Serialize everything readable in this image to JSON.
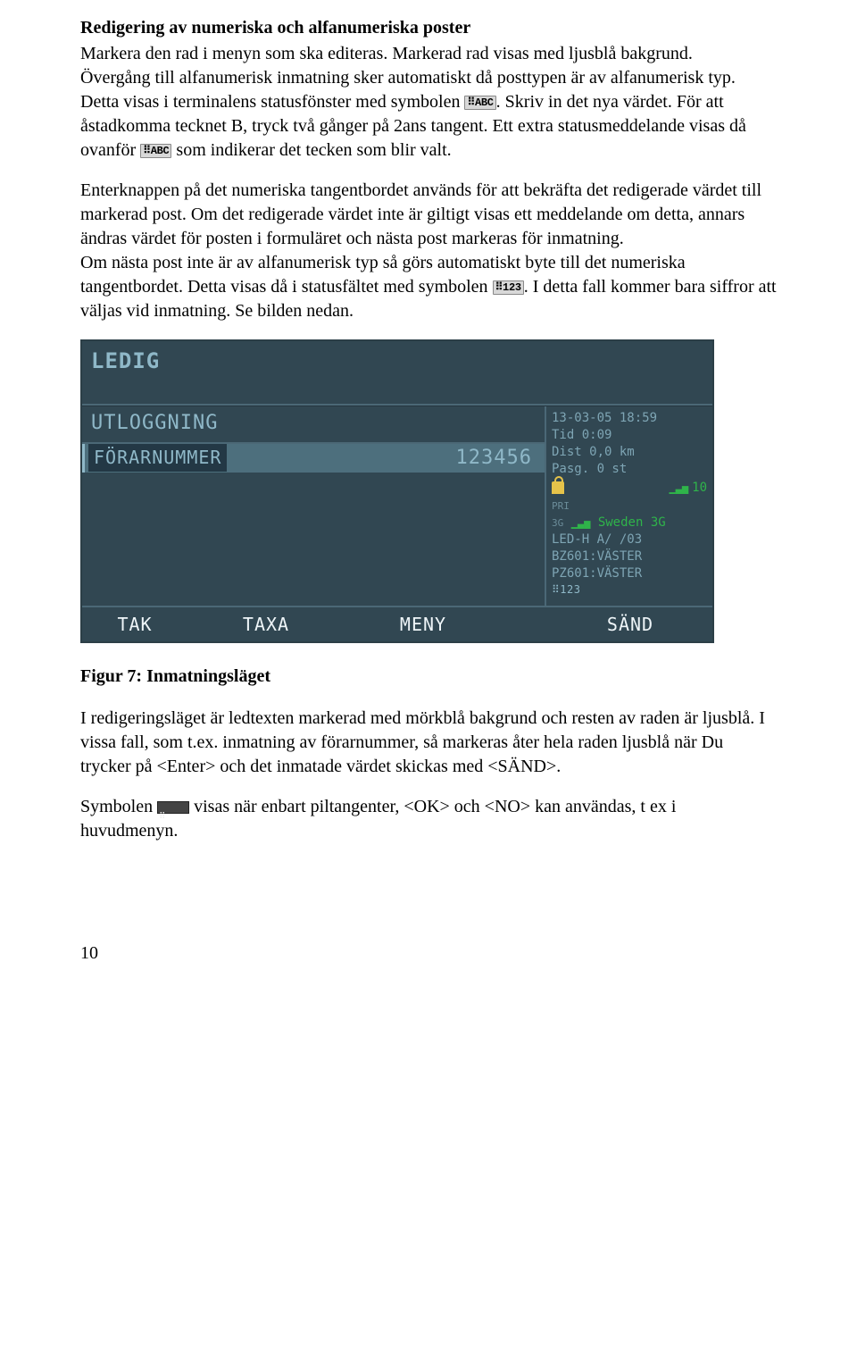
{
  "heading": "Redigering av numeriska och alfanumeriska poster",
  "para1_a": "Markera den rad i menyn som ska editeras. Markerad rad visas med ljusblå bakgrund.",
  "para1_b": "Övergång till alfanumerisk inmatning sker automatiskt då posttypen är av alfanumerisk typ. Detta visas i terminalens statusfönster med symbolen ",
  "para1_c": ". Skriv in det nya värdet. För att åstadkomma tecknet B, tryck två gånger på 2ans tangent. Ett extra statusmeddelande visas då ovanför ",
  "para1_d": " som indikerar det tecken som blir valt.",
  "para2_a": "Enterknappen på det numeriska tangentbordet används för att bekräfta det redigerade värdet till markerad post. Om det redigerade värdet inte är giltigt visas ett meddelande om detta, annars ändras värdet för posten i formuläret och nästa post markeras för inmatning.",
  "para2_b": "Om nästa post inte är av alfanumerisk typ så görs automatiskt byte till det numeriska tangentbordet. Detta visas då i statusfältet med symbolen ",
  "para2_c": ". I detta fall kommer bara siffror att väljas vid inmatning. Se bilden nedan.",
  "badge_abc": "⠿ABC",
  "badge_123": "⠿123",
  "terminal": {
    "status": "LEDIG",
    "screen_title": "UTLOGGNING",
    "field_label": "FÖRARNUMMER",
    "field_value": "123456",
    "side": {
      "datetime": "13-03-05 18:59",
      "tid": "Tid 0:09",
      "dist": "Dist 0,0 km",
      "pasg": "Pasg. 0 st",
      "signal_val": "10",
      "pri": "PRI",
      "net": "3G",
      "carrier": "Sweden 3G",
      "led": "LED-H A/     /03",
      "bz": "BZ601:VÄSTER",
      "pz": "PZ601:VÄSTER",
      "mode": "⠿123"
    },
    "footer": {
      "b1": "TAK",
      "b2": "TAXA",
      "b3": "MENY",
      "b4": "SÄND"
    },
    "colors": {
      "bg": "#314752",
      "text": "#8fb8c8",
      "hl_bg": "#4d6f7d",
      "dark_bg": "#233845",
      "border": "#4b6876",
      "foot_text": "#eef5f8",
      "green": "#2fb44a",
      "yellow": "#e6c34a"
    }
  },
  "figure_caption": "Figur 7: Inmatningsläget",
  "para3": "I redigeringsläget är ledtexten markerad med mörkblå bakgrund och resten av raden är ljusblå. I vissa fall, som t.ex. inmatning av förarnummer, så markeras åter hela raden ljusblå när Du trycker på <Enter> och det inmatade värdet skickas med <SÄND>.",
  "para4_a": "Symbolen ",
  "para4_b": " visas när enbart piltangenter, <OK> och <NO> kan användas, t ex i huvudmenyn.",
  "page_number": "10"
}
